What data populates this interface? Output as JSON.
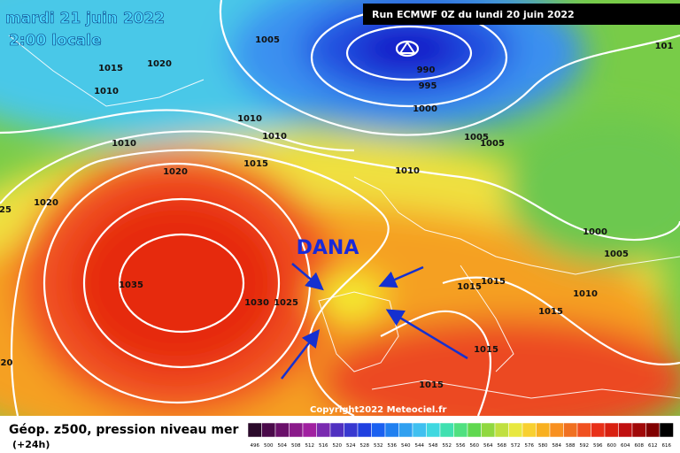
{
  "header": {
    "date": "mardi 21 juin 2022",
    "time": "2:00 locale",
    "run": "Run ECMWF 0Z du lundi 20 juin 2022"
  },
  "map": {
    "annotation": "DANA",
    "copyright": "Copyright2022 Meteociel.fr",
    "isobar_labels": [
      "1005",
      "1015",
      "1020",
      "1010",
      "990",
      "995",
      "1000",
      "1010",
      "1010",
      "1010",
      "1015",
      "1005",
      "1005",
      "1010",
      "1020",
      "25",
      "1020",
      "1035",
      "1030",
      "1025",
      "1000",
      "1005",
      "1015",
      "1015",
      "1010",
      "1015",
      "1015",
      "1015",
      "020",
      "101"
    ]
  },
  "footer": {
    "title": "Géop. z500, pression niveau mer",
    "lead": "(+24h)",
    "scale": [
      "496",
      "500",
      "504",
      "508",
      "512",
      "516",
      "520",
      "524",
      "528",
      "532",
      "536",
      "540",
      "544",
      "548",
      "552",
      "556",
      "560",
      "564",
      "568",
      "572",
      "576",
      "580",
      "584",
      "588",
      "592",
      "596",
      "600",
      "604",
      "608",
      "612",
      "616"
    ]
  }
}
